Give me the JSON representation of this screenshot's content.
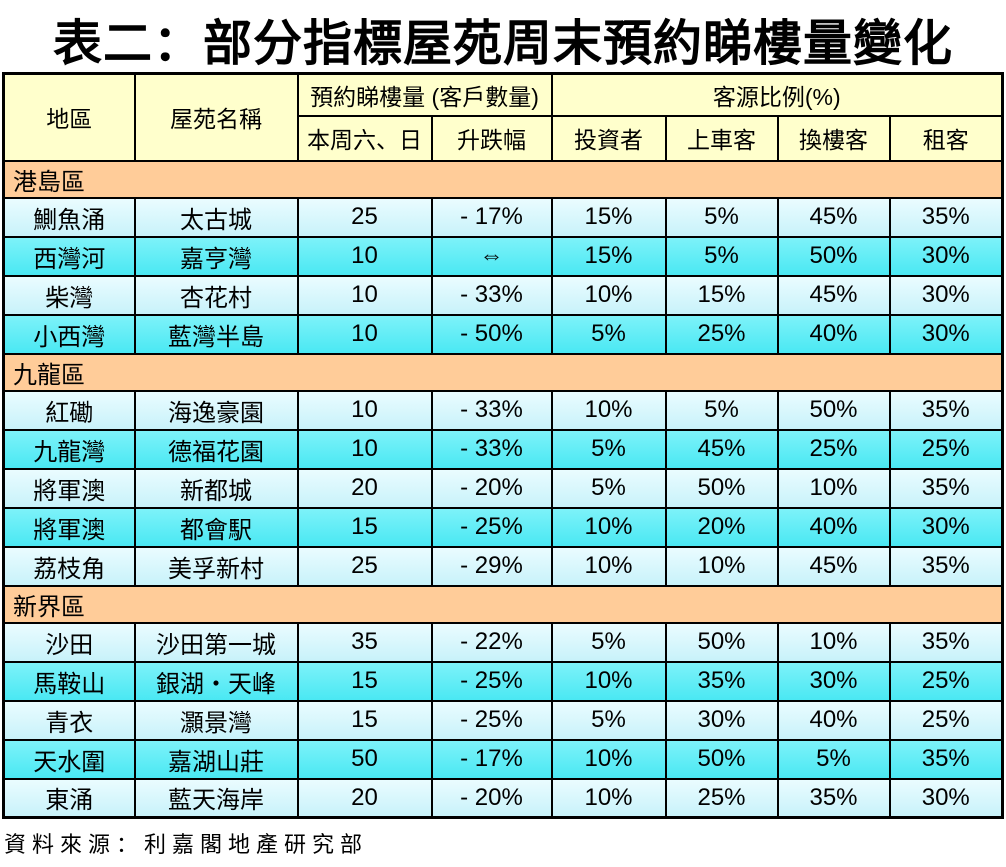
{
  "title": "表二：部分指標屋苑周末預約睇樓量變化",
  "table": {
    "headers": {
      "district": "地區",
      "estate": "屋苑名稱",
      "bookings_group": "預約睇樓量 (客戶數量)",
      "weekend": "本周六、日",
      "change": "升跌幅",
      "source_group": "客源比例(%)",
      "investor": "投資者",
      "first_time": "上車客",
      "upgrader": "換樓客",
      "tenant": "租客"
    },
    "sections": [
      {
        "name": "港島區",
        "rows": [
          {
            "district": "鰂魚涌",
            "estate": "太古城",
            "weekend": "25",
            "change": "- 17%",
            "investor": "15%",
            "first_time": "5%",
            "upgrader": "45%",
            "tenant": "35%"
          },
          {
            "district": "西灣河",
            "estate": "嘉亨灣",
            "weekend": "10",
            "change": "⇔",
            "investor": "15%",
            "first_time": "5%",
            "upgrader": "50%",
            "tenant": "30%"
          },
          {
            "district": "柴灣",
            "estate": "杏花村",
            "weekend": "10",
            "change": "- 33%",
            "investor": "10%",
            "first_time": "15%",
            "upgrader": "45%",
            "tenant": "30%"
          },
          {
            "district": "小西灣",
            "estate": "藍灣半島",
            "weekend": "10",
            "change": "- 50%",
            "investor": "5%",
            "first_time": "25%",
            "upgrader": "40%",
            "tenant": "30%"
          }
        ]
      },
      {
        "name": "九龍區",
        "rows": [
          {
            "district": "紅磡",
            "estate": "海逸豪園",
            "weekend": "10",
            "change": "- 33%",
            "investor": "10%",
            "first_time": "5%",
            "upgrader": "50%",
            "tenant": "35%"
          },
          {
            "district": "九龍灣",
            "estate": "德福花園",
            "weekend": "10",
            "change": "- 33%",
            "investor": "5%",
            "first_time": "45%",
            "upgrader": "25%",
            "tenant": "25%"
          },
          {
            "district": "將軍澳",
            "estate": "新都城",
            "weekend": "20",
            "change": "- 20%",
            "investor": "5%",
            "first_time": "50%",
            "upgrader": "10%",
            "tenant": "35%"
          },
          {
            "district": "將軍澳",
            "estate": "都會駅",
            "weekend": "15",
            "change": "- 25%",
            "investor": "10%",
            "first_time": "20%",
            "upgrader": "40%",
            "tenant": "30%"
          },
          {
            "district": "荔枝角",
            "estate": "美孚新村",
            "weekend": "25",
            "change": "- 29%",
            "investor": "10%",
            "first_time": "10%",
            "upgrader": "45%",
            "tenant": "35%"
          }
        ]
      },
      {
        "name": "新界區",
        "rows": [
          {
            "district": "沙田",
            "estate": "沙田第一城",
            "weekend": "35",
            "change": "- 22%",
            "investor": "5%",
            "first_time": "50%",
            "upgrader": "10%",
            "tenant": "35%"
          },
          {
            "district": "馬鞍山",
            "estate": "銀湖・天峰",
            "weekend": "15",
            "change": "- 25%",
            "investor": "10%",
            "first_time": "35%",
            "upgrader": "30%",
            "tenant": "25%"
          },
          {
            "district": "青衣",
            "estate": "灝景灣",
            "weekend": "15",
            "change": "- 25%",
            "investor": "5%",
            "first_time": "30%",
            "upgrader": "40%",
            "tenant": "25%"
          },
          {
            "district": "天水圍",
            "estate": "嘉湖山莊",
            "weekend": "50",
            "change": "- 17%",
            "investor": "10%",
            "first_time": "50%",
            "upgrader": "5%",
            "tenant": "35%"
          },
          {
            "district": "東涌",
            "estate": "藍天海岸",
            "weekend": "20",
            "change": "- 20%",
            "investor": "10%",
            "first_time": "25%",
            "upgrader": "35%",
            "tenant": "30%"
          }
        ]
      }
    ]
  },
  "footer": {
    "source": "資料來源：利嘉閣地產研究部"
  },
  "colors": {
    "header_bg": "#FFFFCC",
    "section_bg": "#FFCC99",
    "row_light_top": "#EAFCFF",
    "row_light_bottom": "#C8F2FA",
    "row_bright_top": "#7DF2F9",
    "row_bright_bottom": "#4AE8F3",
    "border": "#000000",
    "text": "#000000"
  }
}
